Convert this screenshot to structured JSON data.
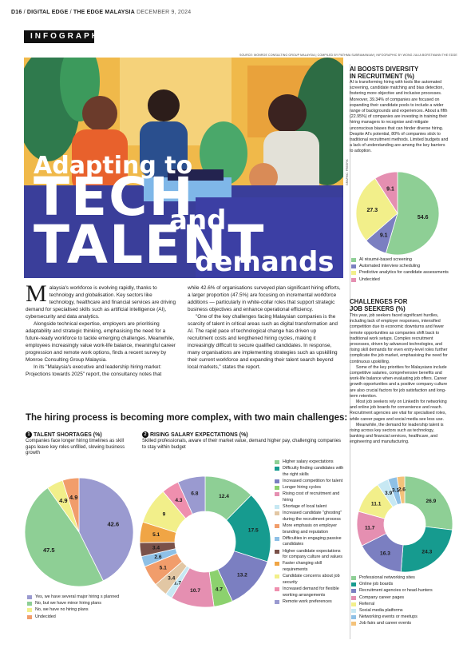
{
  "topbar": {
    "page": "D16",
    "section": "DIGITAL EDGE",
    "masthead": "THE EDGE MALAYSIA",
    "date": "DECEMBER 9, 2024"
  },
  "tag": "INFOGRAPHIC",
  "source_line": "SOURCE: MONROE CONSULTING GROUP MALAYSIA | COMPILED BY PATHMA SUBRAMANIAM | INFOGRAPHIC BY WONG JULIA BORSTMANN THE EDGE",
  "photo_credit": "GRAPHIC: FREEPIK",
  "hero": {
    "line1": "Adapting to",
    "line2": "TECH",
    "line3": "and",
    "line4": "TALENT",
    "line5": "demands"
  },
  "intro": {
    "dropcap": "M",
    "p1": "alaysia's workforce is evolving rapidly, thanks to technology and globalisation. Key sectors like technology, healthcare and financial services are driving demand for specialised skills such as artificial intelligence (AI), cybersecurity and data analytics.",
    "p2": "Alongside technical expertise, employers are prioritising adaptability and strategic thinking, emphasising the need for a future-ready workforce to tackle emerging challenges. Meanwhile, employees increasingly value work-life balance, meaningful career progression and remote work options, finds a recent survey by Monroe Consulting Group Malaysia.",
    "p3": "In its \"Malaysia's executive and leadership hiring market: Projections towards 2025\" report, the consultancy notes that",
    "p4": "while 42.6% of organisations surveyed plan significant hiring efforts, a larger proportion (47.5%) are focusing on incremental workforce additions — particularly in white-collar roles that support strategic business objectives and enhance operational efficiency.",
    "p5": "\"One of the key challenges facing Malaysian companies is the scarcity of talent in critical areas such as digital transformation and AI. The rapid pace of technological change has driven up recruitment costs and lengthened hiring cycles, making it increasingly difficult to secure qualified candidates. In response, many organisations are implementing strategies such as upskilling their current workforce and expanding their talent search beyond local markets,\" states the report."
  },
  "ai_box": {
    "title1": "AI BOOSTS DIVERSITY",
    "title2": "IN RECRUITMENT (%)",
    "text": "AI is transforming hiring with tools like automated screening, candidate matching and bias detection, fostering more objective and inclusive processes. Moreover, 39.34% of companies are focused on expanding their candidate pools to include a wider range of backgrounds and experiences. About a fifth (22.95%) of companies are investing in training their hiring managers to recognise and mitigate unconscious biases that can hinder diverse hiring. Despite AI's potential, 80% of companies stick to traditional recruitment methods. Limited budgets and a lack of understanding are among the key barriers to adoption."
  },
  "seekers_box": {
    "title1": "CHALLENGES FOR",
    "title2": "JOB SEEKERS (%)",
    "p1": "This year, job seekers faced significant hurdles, including lack of employer responses, intensified competition due to economic downturns and fewer remote opportunities as companies shift back to traditional work setups. Complex recruitment processes, driven by advanced technologies, and rising skill demands for even entry-level roles further complicate the job market, emphasising the need for continuous upskilling.",
    "p2": "Some of the key priorities for Malaysians include competitive salaries, comprehensive benefits and work-life balance when evaluating job offers. Career growth opportunities and a positive company culture are also crucial factors for job satisfaction and long-term retention.",
    "p3": "Most job seekers rely on LinkedIn for networking and online job boards for convenience and reach. Recruitment agencies are vital for specialised roles, while career pages and social media see less use.",
    "p4": "Meanwhile, the demand for leadership talent is rising across key sectors such as technology, banking and financial services, healthcare, and engineering and manufacturing."
  },
  "section_heading": "The hiring process is becoming more complex, with two main challenges:",
  "chart1": {
    "num": "1",
    "title": "TALENT SHORTAGES (%)",
    "desc": "Companies face longer hiring timelines as skill gaps leave key roles unfilled, slowing business growth"
  },
  "chart2": {
    "num": "2",
    "title": "RISING SALARY EXPECTATIONS (%)",
    "desc": "Skilled professionals, aware of their market value, demand higher pay, challenging companies to stay within budget"
  },
  "chart_data": [
    {
      "type": "pie",
      "title": "AI BOOSTS DIVERSITY IN RECRUITMENT (%)",
      "labels": [
        "AI résumé-based screening",
        "Automated interview scheduling",
        "Predictive analytics for candidate assessments",
        "Undecided"
      ],
      "values": [
        54.6,
        9.1,
        27.3,
        9.1
      ],
      "colors": [
        "#8ecf95",
        "#7b7fc1",
        "#f2ef8a",
        "#e58fb1"
      ]
    },
    {
      "type": "pie",
      "title": "TALENT SHORTAGES (%)",
      "labels": [
        "Yes, we have several major hiring s planned",
        "No, but we have minor hiring plans",
        "No, we have no hiring plans",
        "Undecided"
      ],
      "values": [
        42.6,
        47.5,
        4.9,
        4.9
      ],
      "colors": [
        "#9a9ad0",
        "#8ecf95",
        "#f2ef8a",
        "#f19d6b"
      ]
    },
    {
      "type": "pie",
      "title": "RISING SALARY EXPECTATIONS (%)",
      "labels": [
        "Higher salary expectations",
        "Difficulty finding candidates with the right skills",
        "Increased competition for talent",
        "Longer hiring cycles",
        "Rising cost of recruitment and hiring",
        "Shortage of local talent",
        "Increased candidate \"ghosting\" during the recruitment process",
        "More emphasis on employer branding and reputation",
        "Difficulties in engaging passive candidates",
        "Higher candidate expectations for company culture and values",
        "Faster changing skill requirements",
        "Candidate concerns about job security",
        "Increased demand for flexible working arrangements",
        "Remote work preferences"
      ],
      "values": [
        12.4,
        17.5,
        13.2,
        4.7,
        10.7,
        1.7,
        3.4,
        5.1,
        2.6,
        3.4,
        5.1,
        9,
        4.3,
        6.8
      ],
      "colors": [
        "#8ecf95",
        "#169b8f",
        "#7b7fc1",
        "#8cd16e",
        "#e58fb1",
        "#c7e8f3",
        "#e2c7a4",
        "#f19d6b",
        "#8ec0e6",
        "#7a5149",
        "#f0a545",
        "#f2ef8a",
        "#ef8fae",
        "#9a9ad0"
      ]
    },
    {
      "type": "pie",
      "title": "CHALLENGES FOR JOB SEEKERS (%)",
      "labels": [
        "Professional networking sites",
        "Online job boards",
        "Recruitment agencies or head-hunters",
        "Company career pages",
        "Referral",
        "Social media platforms",
        "Networking events or meetups",
        "Job fairs and career events"
      ],
      "values": [
        26.9,
        24.3,
        16.3,
        11.7,
        11.1,
        3.9,
        3.1,
        2.6
      ],
      "colors": [
        "#8ecf95",
        "#169b8f",
        "#7b7fc1",
        "#e58fb1",
        "#f2ef8a",
        "#c7e8f3",
        "#8ec0e6",
        "#f4c27a"
      ]
    }
  ]
}
